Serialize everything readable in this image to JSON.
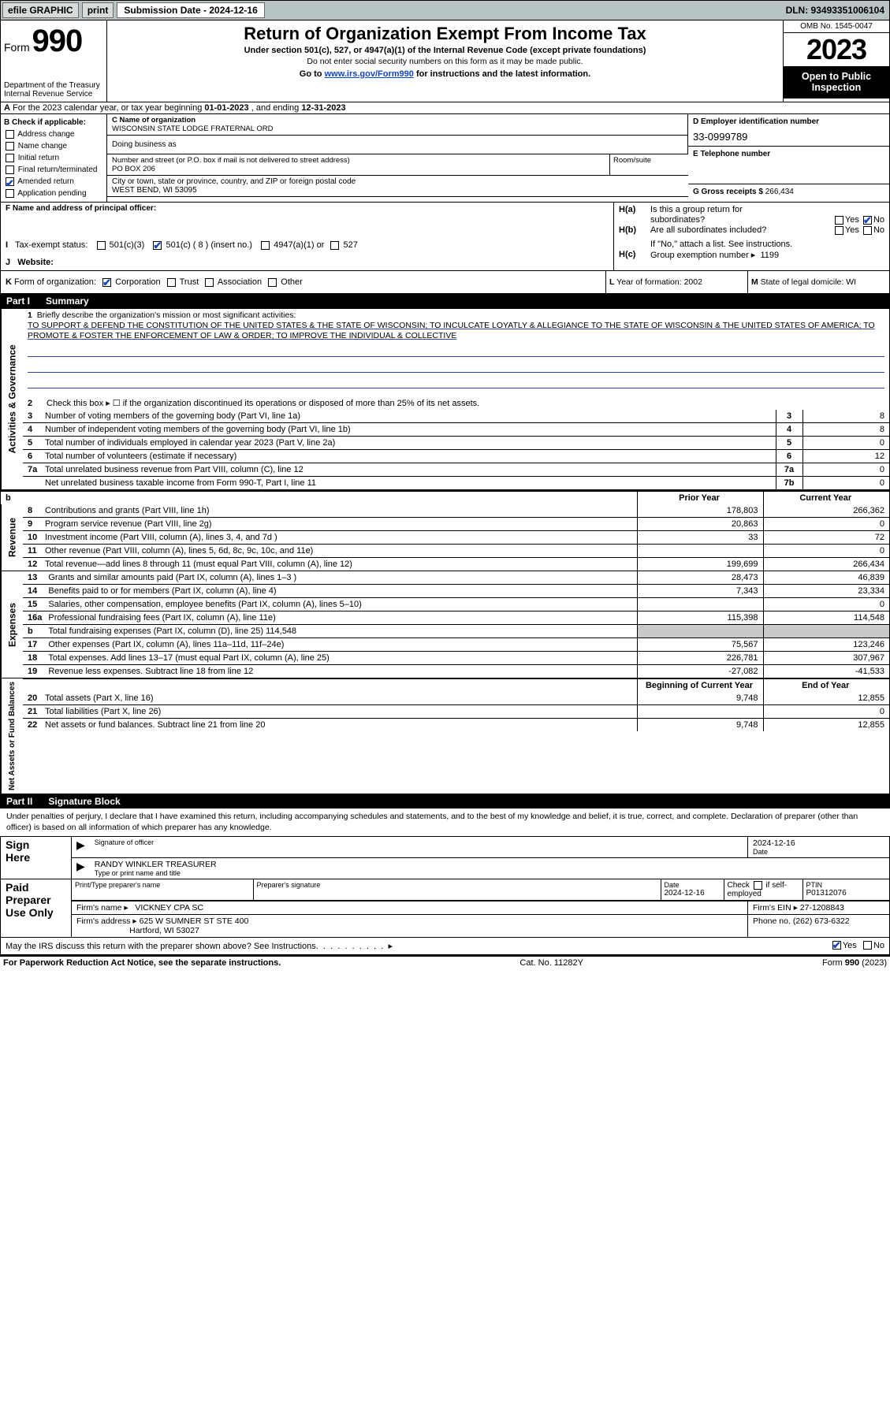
{
  "topbar": {
    "efile_label": "efile GRAPHIC",
    "print_label": "print",
    "submission_label": "Submission Date - 2024-12-16",
    "dln_label": "DLN: 93493351006104"
  },
  "header": {
    "form_label": "Form",
    "form_number": "990",
    "title": "Return of Organization Exempt From Income Tax",
    "subtitle": "Under section 501(c), 527, or 4947(a)(1) of the Internal Revenue Code (except private foundations)",
    "ssn_note": "Do not enter social security numbers on this form as it may be made public.",
    "goto": "Go to ",
    "goto_url": "www.irs.gov/Form990",
    "goto_tail": " for instructions and the latest information.",
    "dept": "Department of the Treasury",
    "irs": "Internal Revenue Service",
    "omb": "OMB No. 1545-0047",
    "year": "2023",
    "otpi": "Open to Public Inspection"
  },
  "row_a": {
    "prefix": "A",
    "text1": "For the 2023 calendar year, or tax year beginning ",
    "ty_begin": "01-01-2023",
    "text2": " , and ending ",
    "ty_end": "12-31-2023"
  },
  "col_b": {
    "heading": "B Check if applicable:",
    "items": [
      "Address change",
      "Name change",
      "Initial return",
      "Final return/terminated",
      "Amended return",
      "Application pending"
    ],
    "checked_index": 4
  },
  "c": {
    "name_lbl": "C Name of organization",
    "name": "WISCONSIN STATE LODGE FRATERNAL ORD",
    "dba_lbl": "Doing business as",
    "addr_lbl": "Number and street (or P.O. box if mail is not delivered to street address)",
    "room_lbl": "Room/suite",
    "addr": "PO BOX 206",
    "city_lbl": "City or town, state or province, country, and ZIP or foreign postal code",
    "city": "WEST BEND, WI  53095"
  },
  "d": {
    "lbl": "D Employer identification number",
    "val": "33-0999789"
  },
  "e": {
    "lbl": "E Telephone number",
    "val": ""
  },
  "g": {
    "lbl": "G Gross receipts $",
    "val": "266,434"
  },
  "f": {
    "lbl": "F  Name and address of principal officer:",
    "val": ""
  },
  "h": {
    "a_lbl": "H(a)",
    "a_txt": "Is this a group return for",
    "a_txt2": "subordinates?",
    "a_yes": "Yes",
    "a_no": "No",
    "b_lbl": "H(b)",
    "b_txt": "Are all subordinates included?",
    "b_yes": "Yes",
    "b_no": "No",
    "b_note": "If \"No,\" attach a list. See instructions.",
    "c_lbl": "H(c)",
    "c_txt": "Group exemption number  ▸",
    "c_val": "1199"
  },
  "i": {
    "lbl": "I",
    "txt": "Tax-exempt status:",
    "o1": "501(c)(3)",
    "o2a": "501(c) (",
    "o2n": "8",
    "o2b": ") (insert no.)",
    "o3": "4947(a)(1) or",
    "o4": "527"
  },
  "j": {
    "lbl": "J",
    "txt": "Website: "
  },
  "k": {
    "lbl": "K",
    "txt": "Form of organization:",
    "o1": "Corporation",
    "o2": "Trust",
    "o3": "Association",
    "o4": "Other"
  },
  "l": {
    "lbl": "L",
    "txt": "Year of formation: 2002"
  },
  "m": {
    "lbl": "M",
    "txt": "State of legal domicile: WI"
  },
  "part1": {
    "label": "Part I",
    "title": "Summary"
  },
  "side_labels": {
    "ag": "Activities & Governance",
    "rev": "Revenue",
    "exp": "Expenses",
    "nab": "Net Assets or Fund Balances"
  },
  "q1": {
    "num": "1",
    "txt": "Briefly describe the organization's mission or most significant activities:",
    "body": "TO SUPPORT & DEFEND THE CONSTITUTION OF THE UNITED STATES & THE STATE OF WISCONSIN; TO INCULCATE LOYATLY & ALLEGIANCE TO THE STATE OF WISCONSIN & THE UNITED STATES OF AMERICA; TO PROMOTE & FOSTER THE ENFORCEMENT OF LAW & ORDER; TO IMPROVE THE INDIVIDUAL & COLLECTIVE"
  },
  "q2": {
    "num": "2",
    "txt": "Check this box ▸ ☐ if the organization discontinued its operations or disposed of more than 25% of its net assets."
  },
  "lines_small": [
    {
      "num": "3",
      "txt": "Number of voting members of the governing body (Part VI, line 1a)",
      "code": "3",
      "val": "8"
    },
    {
      "num": "4",
      "txt": "Number of independent voting members of the governing body (Part VI, line 1b)",
      "code": "4",
      "val": "8"
    },
    {
      "num": "5",
      "txt": "Total number of individuals employed in calendar year 2023 (Part V, line 2a)",
      "code": "5",
      "val": "0"
    },
    {
      "num": "6",
      "txt": "Total number of volunteers (estimate if necessary)",
      "code": "6",
      "val": "12"
    },
    {
      "num": "7a",
      "txt": "Total unrelated business revenue from Part VIII, column (C), line 12",
      "code": "7a",
      "val": "0"
    },
    {
      "num": "",
      "txt": "Net unrelated business taxable income from Form 990-T, Part I, line 11",
      "code": "7b",
      "val": "0"
    }
  ],
  "py_cy_header": {
    "num": "b",
    "prior": "Prior Year",
    "current": "Current Year"
  },
  "rev_lines": [
    {
      "num": "8",
      "txt": "Contributions and grants (Part VIII, line 1h)",
      "prior": "178,803",
      "cur": "266,362"
    },
    {
      "num": "9",
      "txt": "Program service revenue (Part VIII, line 2g)",
      "prior": "20,863",
      "cur": "0"
    },
    {
      "num": "10",
      "txt": "Investment income (Part VIII, column (A), lines 3, 4, and 7d )",
      "prior": "33",
      "cur": "72"
    },
    {
      "num": "11",
      "txt": "Other revenue (Part VIII, column (A), lines 5, 6d, 8c, 9c, 10c, and 11e)",
      "prior": "",
      "cur": "0"
    },
    {
      "num": "12",
      "txt": "Total revenue—add lines 8 through 11 (must equal Part VIII, column (A), line 12)",
      "prior": "199,699",
      "cur": "266,434"
    }
  ],
  "exp_lines": [
    {
      "num": "13",
      "txt": "Grants and similar amounts paid (Part IX, column (A), lines 1–3 )",
      "prior": "28,473",
      "cur": "46,839"
    },
    {
      "num": "14",
      "txt": "Benefits paid to or for members (Part IX, column (A), line 4)",
      "prior": "7,343",
      "cur": "23,334"
    },
    {
      "num": "15",
      "txt": "Salaries, other compensation, employee benefits (Part IX, column (A), lines 5–10)",
      "prior": "",
      "cur": "0"
    },
    {
      "num": "16a",
      "txt": "Professional fundraising fees (Part IX, column (A), line 11e)",
      "prior": "115,398",
      "cur": "114,548"
    },
    {
      "num": "b",
      "txt": "Total fundraising expenses (Part IX, column (D), line 25) 114,548",
      "prior": "SHADE",
      "cur": "SHADE"
    },
    {
      "num": "17",
      "txt": "Other expenses (Part IX, column (A), lines 11a–11d, 11f–24e)",
      "prior": "75,567",
      "cur": "123,246"
    },
    {
      "num": "18",
      "txt": "Total expenses. Add lines 13–17 (must equal Part IX, column (A), line 25)",
      "prior": "226,781",
      "cur": "307,967"
    },
    {
      "num": "19",
      "txt": "Revenue less expenses. Subtract line 18 from line 12",
      "prior": "-27,082",
      "cur": "-41,533"
    }
  ],
  "nab_header": {
    "prior": "Beginning of Current Year",
    "current": "End of Year"
  },
  "nab_lines": [
    {
      "num": "20",
      "txt": "Total assets (Part X, line 16)",
      "prior": "9,748",
      "cur": "12,855"
    },
    {
      "num": "21",
      "txt": "Total liabilities (Part X, line 26)",
      "prior": "",
      "cur": "0"
    },
    {
      "num": "22",
      "txt": "Net assets or fund balances. Subtract line 21 from line 20",
      "prior": "9,748",
      "cur": "12,855"
    }
  ],
  "part2": {
    "label": "Part II",
    "title": "Signature Block"
  },
  "perjury": "Under penalties of perjury, I declare that I have examined this return, including accompanying schedules and statements, and to the best of my knowledge and belief, it is true, correct, and complete. Declaration of preparer (other than officer) is based on all information of which preparer has any knowledge.",
  "sign_here": {
    "lbl1": "Sign",
    "lbl2": "Here",
    "sig_lbl": "Signature of officer",
    "date_lbl": "Date",
    "date_val": "2024-12-16",
    "name": "RANDY WINKLER  TREASURER",
    "type_lbl": "Type or print name and title"
  },
  "paid": {
    "lbl1": "Paid",
    "lbl2": "Preparer",
    "lbl3": "Use Only",
    "col1": "Print/Type preparer's name",
    "col2": "Preparer's signature",
    "col3": "Date",
    "col3v": "2024-12-16",
    "col4a": "Check",
    "col4b": "if self-employed",
    "col5": "PTIN",
    "col5v": "P01312076",
    "firm_lbl": "Firm's name  ▸",
    "firm": "VICKNEY CPA SC",
    "firm_ein_lbl": "Firm's EIN ▸",
    "firm_ein": "27-1208843",
    "addr_lbl": "Firm's address ▸",
    "addr1": "625 W SUMNER ST STE 400",
    "addr2": "Hartford, WI  53027",
    "phone_lbl": "Phone no.",
    "phone": "(262) 673-6322"
  },
  "discuss": {
    "txt": "May the IRS discuss this return with the preparer shown above? See Instructions.",
    "yes": "Yes",
    "no": "No"
  },
  "footer": {
    "left": "For Paperwork Reduction Act Notice, see the separate instructions.",
    "mid": "Cat. No. 11282Y",
    "right": "Form 990 (2023)"
  }
}
